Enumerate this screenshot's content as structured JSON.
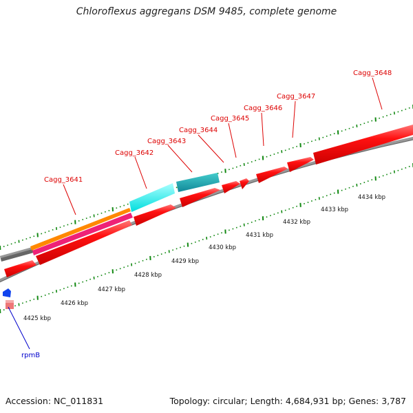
{
  "title": "Chloroflexus aggregans DSM 9485, complete genome",
  "accession_line": "Accession: NC_011831",
  "summary_line": "Topology: circular; Length: 4,684,931 bp; Genes: 3,787",
  "colors": {
    "cds": "#ff0000",
    "label_red": "#dd0000",
    "label_blue": "#0000cc",
    "tick_green": "#118811",
    "backbone": "#999999",
    "orange": "#ff8800",
    "magenta": "#ee2277",
    "gray_feature": "#666666",
    "cyan": "#00eeee",
    "dark_cyan": "#11aabb",
    "rna_blue": "#1144ee",
    "rna_pink": "#ee7777"
  },
  "kbp_labels": [
    "4425 kbp",
    "4426 kbp",
    "4427 kbp",
    "4428 kbp",
    "4429 kbp",
    "4430 kbp",
    "4431 kbp",
    "4432 kbp",
    "4433 kbp",
    "4434 kbp"
  ],
  "gene_labels": [
    "Cagg_3641",
    "Cagg_3642",
    "Cagg_3643",
    "Cagg_3644",
    "Cagg_3645",
    "Cagg_3646",
    "Cagg_3647",
    "Cagg_3648"
  ],
  "rna_label": "rpmB"
}
